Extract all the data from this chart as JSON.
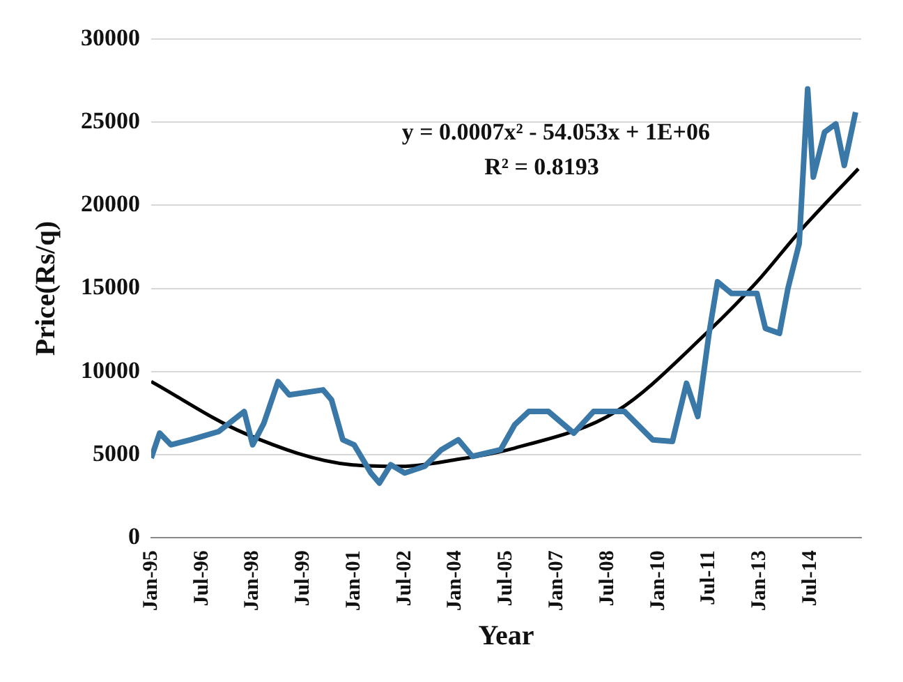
{
  "chart_data": {
    "type": "line",
    "xlabel": "Year",
    "ylabel": "Price(Rs/q)",
    "xlim": [
      "1995-01",
      "2016-01"
    ],
    "xticks": [
      {
        "value": "1995-01",
        "label": "Jan-95"
      },
      {
        "value": "1996-07",
        "label": "Jul-96"
      },
      {
        "value": "1998-01",
        "label": "Jan-98"
      },
      {
        "value": "1999-07",
        "label": "Jul-99"
      },
      {
        "value": "2001-01",
        "label": "Jan-01"
      },
      {
        "value": "2002-07",
        "label": "Jul-02"
      },
      {
        "value": "2004-01",
        "label": "Jan-04"
      },
      {
        "value": "2005-07",
        "label": "Jul-05"
      },
      {
        "value": "2007-01",
        "label": "Jan-07"
      },
      {
        "value": "2008-07",
        "label": "Jul-08"
      },
      {
        "value": "2010-01",
        "label": "Jan-10"
      },
      {
        "value": "2011-07",
        "label": "Jul-11"
      },
      {
        "value": "2013-01",
        "label": "Jan-13"
      },
      {
        "value": "2014-07",
        "label": "Jul-14"
      }
    ],
    "ylim": [
      0,
      30000
    ],
    "yticks": [
      0,
      5000,
      10000,
      15000,
      20000,
      25000,
      30000
    ],
    "grid": "y",
    "legend": false,
    "marker": "none",
    "line_style": "solid",
    "series": [
      {
        "type": "line",
        "color": "#3a78a8",
        "x": [
          "1995-01",
          "1995-04",
          "1995-08",
          "1996-03",
          "1997-01",
          "1997-10",
          "1998-01",
          "1998-05",
          "1998-10",
          "1999-02",
          "2000-02",
          "2000-05",
          "2000-09",
          "2001-01",
          "2001-07",
          "2001-10",
          "2002-02",
          "2002-07",
          "2003-02",
          "2003-08",
          "2004-02",
          "2004-07",
          "2005-05",
          "2005-10",
          "2006-03",
          "2006-10",
          "2007-07",
          "2008-02",
          "2009-01",
          "2009-11",
          "2010-06",
          "2010-11",
          "2011-03",
          "2011-07",
          "2011-10",
          "2012-03",
          "2012-12",
          "2013-03",
          "2013-08",
          "2013-11",
          "2014-03",
          "2014-06",
          "2014-08",
          "2014-12",
          "2015-04",
          "2015-07",
          "2015-11"
        ],
        "values": [
          4800,
          6300,
          5600,
          5900,
          6400,
          7600,
          5600,
          6900,
          9400,
          8600,
          8900,
          8300,
          5900,
          5600,
          3900,
          3300,
          4400,
          3900,
          4300,
          5300,
          5900,
          4900,
          5300,
          6800,
          7600,
          7600,
          6300,
          7600,
          7600,
          5900,
          5800,
          9300,
          7300,
          12300,
          15400,
          14700,
          14700,
          12600,
          12300,
          15000,
          17700,
          27000,
          21700,
          24400,
          24900,
          22400,
          25600
        ]
      },
      {
        "type": "line",
        "color": "#000000",
        "x": [
          "1995-01",
          "1997-10",
          "2000-12",
          "2002-06",
          "2004-01",
          "2005-10",
          "2008-10",
          "2011-06",
          "2012-12",
          "2014-03",
          "2015-12"
        ],
        "values": [
          9400,
          6300,
          4400,
          4300,
          4700,
          5400,
          7600,
          12300,
          15400,
          18400,
          22200
        ]
      }
    ],
    "annotations": [
      "y = 0.0007x² - 54.053x + 1E+06",
      "R² = 0.8193"
    ]
  }
}
